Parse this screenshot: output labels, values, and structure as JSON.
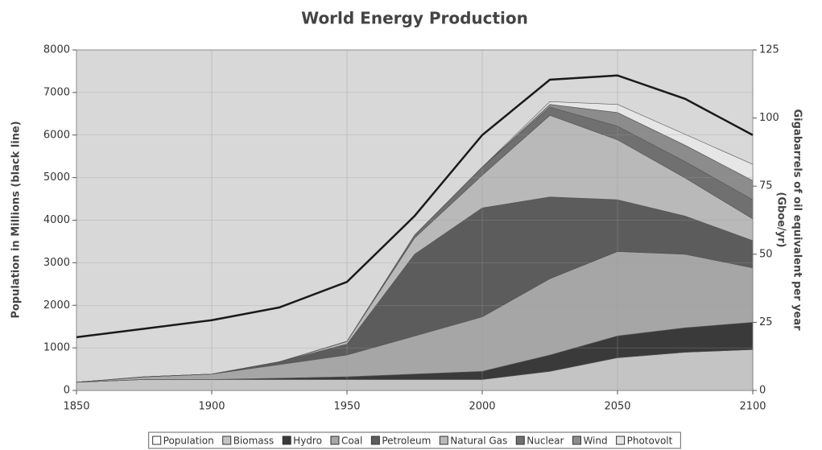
{
  "chart_data": {
    "type": "area",
    "title": "World Energy Production",
    "y_label": "Population in Millions (black line)",
    "y2_label": [
      "Gigabarrels of oil equivalent per year",
      "(Gboe/yr)"
    ],
    "x": [
      1850,
      1875,
      1900,
      1925,
      1950,
      1975,
      2000,
      2025,
      2050,
      2075,
      2100
    ],
    "xlim": [
      1850,
      2100
    ],
    "xticks": [
      1850,
      1900,
      1950,
      2000,
      2050,
      2100
    ],
    "ylim": [
      0,
      8000
    ],
    "yticks": [
      0,
      1000,
      2000,
      3000,
      4000,
      5000,
      6000,
      7000,
      8000
    ],
    "y2lim": [
      0,
      125
    ],
    "y2ticks": [
      0,
      25,
      50,
      75,
      100,
      125
    ],
    "grid": true,
    "legend": "bottom",
    "series": [
      {
        "name": "Population",
        "type": "line",
        "color": "#1a1a1a",
        "values": [
          1250,
          1450,
          1650,
          1950,
          2550,
          4100,
          6000,
          7300,
          7400,
          6850,
          6000
        ]
      },
      {
        "name": "Biomass",
        "color": "#c4c4c4",
        "axis": "y2",
        "values": [
          3,
          4,
          4,
          4,
          4,
          4,
          4,
          7,
          12,
          14,
          15
        ]
      },
      {
        "name": "Hydro",
        "color": "#3a3a3a",
        "axis": "y2",
        "values": [
          0,
          0,
          0,
          0.5,
          1,
          2,
          3,
          6,
          8,
          9,
          10
        ]
      },
      {
        "name": "Coal",
        "color": "#a6a6a6",
        "axis": "y2",
        "values": [
          0,
          1,
          2,
          5,
          8,
          14,
          20,
          28,
          31,
          27,
          20
        ]
      },
      {
        "name": "Petroleum",
        "color": "#5c5c5c",
        "axis": "y2",
        "values": [
          0,
          0,
          0,
          1,
          4,
          30,
          40,
          30,
          19,
          14,
          10
        ]
      },
      {
        "name": "Natural Gas",
        "color": "#b9b9b9",
        "axis": "y2",
        "values": [
          0,
          0,
          0,
          0,
          1,
          6,
          12,
          30,
          22,
          14,
          8
        ]
      },
      {
        "name": "Nuclear",
        "color": "#707070",
        "axis": "y2",
        "values": [
          0,
          0,
          0,
          0,
          0,
          1,
          3,
          3,
          5,
          6,
          7
        ]
      },
      {
        "name": "Wind",
        "color": "#8c8c8c",
        "axis": "y2",
        "values": [
          0,
          0,
          0,
          0,
          0,
          0,
          0,
          1,
          5,
          6,
          7
        ]
      },
      {
        "name": "Photovolt",
        "color": "#e6e6e6",
        "axis": "y2",
        "values": [
          0,
          0,
          0,
          0,
          0,
          0,
          0,
          1,
          3,
          4,
          6
        ]
      }
    ]
  }
}
